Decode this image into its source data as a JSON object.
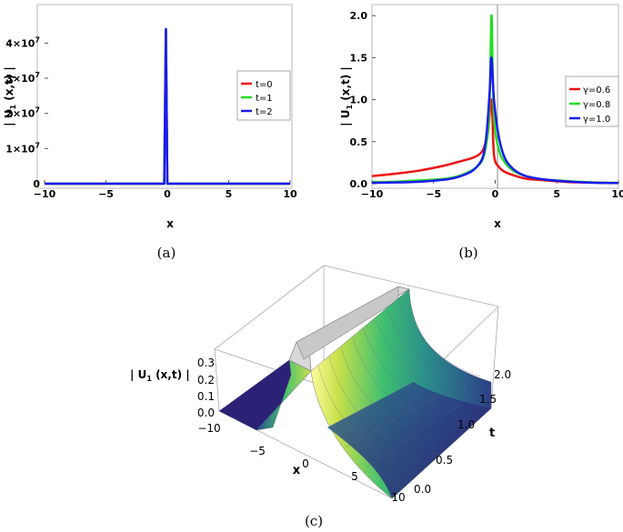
{
  "chart_data": [
    {
      "panel": "(a)",
      "type": "line",
      "xlabel": "x",
      "ylabel": "| U",
      "ylabel_sub": "1",
      "ylabel_tail": " (x,t) |",
      "xlim": [
        -10,
        10
      ],
      "ylim": [
        0,
        45000000
      ],
      "xticks": [
        -10,
        -5,
        0,
        5,
        10
      ],
      "xtick_labels": [
        "−10",
        "−5",
        "0",
        "5",
        "10"
      ],
      "yticks": [
        {
          "value": 0,
          "base": "0",
          "exp": ""
        },
        {
          "value": 10000000,
          "base": "1×10",
          "exp": "7"
        },
        {
          "value": 20000000,
          "base": "2×10",
          "exp": "7"
        },
        {
          "value": 30000000,
          "base": "3×10",
          "exp": "7"
        },
        {
          "value": 40000000,
          "base": "4×10",
          "exp": "7"
        }
      ],
      "legend": "right",
      "series": [
        {
          "name": "t=0",
          "color": "#ee1111",
          "x": [
            -10,
            -0.25,
            -0.12,
            0.0,
            10
          ],
          "y": [
            0,
            0,
            44000000,
            0,
            0
          ]
        },
        {
          "name": "t=1",
          "color": "#22dd22",
          "x": [
            -10,
            -0.25,
            -0.12,
            0.0,
            10
          ],
          "y": [
            0,
            0,
            44000000,
            0,
            0
          ]
        },
        {
          "name": "t=2",
          "color": "#1a1aee",
          "x": [
            -10,
            -0.25,
            -0.12,
            0.0,
            10
          ],
          "y": [
            0,
            0,
            44000000,
            0,
            0
          ]
        }
      ]
    },
    {
      "panel": "(b)",
      "type": "line",
      "xlabel": "x",
      "ylabel": "| U",
      "ylabel_sub": "1",
      "ylabel_tail": " (x,t) |",
      "xlim": [
        -10,
        10
      ],
      "ylim": [
        0,
        2.1
      ],
      "xticks": [
        -10,
        -5,
        0,
        5,
        10
      ],
      "xtick_labels": [
        "−10",
        "−5",
        "0",
        "5",
        "10"
      ],
      "yticks": [
        0,
        0.5,
        1.0,
        1.5,
        2.0
      ],
      "ytick_labels": [
        "0.0",
        "0.5",
        "1.0",
        "1.5",
        "2.0"
      ],
      "legend": "right",
      "series": [
        {
          "name": "γ=0.6",
          "color": "#ee1111",
          "x": [
            -10,
            -8,
            -6,
            -4,
            -3,
            -2,
            -1.5,
            -1,
            -0.6,
            -0.3,
            -0.1,
            0.3,
            0.8,
            1.5,
            2.5,
            4,
            6,
            8,
            10
          ],
          "y": [
            0.09,
            0.12,
            0.16,
            0.22,
            0.26,
            0.3,
            0.33,
            0.4,
            0.6,
            1.0,
            0.35,
            0.2,
            0.14,
            0.1,
            0.06,
            0.04,
            0.02,
            0.012,
            0.008
          ]
        },
        {
          "name": "γ=0.8",
          "color": "#22dd22",
          "x": [
            -10,
            -8,
            -6,
            -4,
            -3,
            -2,
            -1.5,
            -1,
            -0.6,
            -0.45,
            -0.3,
            -0.2,
            -0.05,
            0.3,
            0.8,
            1.5,
            2.5,
            4,
            6,
            8,
            10
          ],
          "y": [
            0.02,
            0.025,
            0.04,
            0.06,
            0.09,
            0.15,
            0.2,
            0.3,
            0.6,
            1.0,
            2.0,
            1.3,
            0.7,
            0.4,
            0.25,
            0.15,
            0.09,
            0.05,
            0.03,
            0.015,
            0.01
          ]
        },
        {
          "name": "γ=1.0",
          "color": "#1a1aee",
          "x": [
            -10,
            -8,
            -6,
            -4,
            -3,
            -2,
            -1.5,
            -1,
            -0.7,
            -0.45,
            -0.3,
            -0.1,
            0.3,
            0.8,
            1.5,
            2.5,
            4,
            6,
            8,
            10
          ],
          "y": [
            0.01,
            0.015,
            0.025,
            0.05,
            0.08,
            0.14,
            0.2,
            0.32,
            0.6,
            1.1,
            1.5,
            1.0,
            0.55,
            0.3,
            0.17,
            0.09,
            0.05,
            0.025,
            0.012,
            0.008
          ]
        }
      ]
    },
    {
      "panel": "(c)",
      "type": "surface",
      "zlabel": "| U",
      "zlabel_sub": "1",
      "zlabel_tail": " (x,t) |",
      "xlabel": "x",
      "tlabel": "t",
      "xlim": [
        -10,
        10
      ],
      "tlim": [
        0,
        2
      ],
      "zlim": [
        0,
        0.35
      ],
      "xtick_labels": [
        "−10",
        "−5",
        "0",
        "5",
        "10"
      ],
      "ttick_labels": [
        "0.0",
        "0.5",
        "1.0",
        "1.5",
        "2.0"
      ],
      "ztick_labels": [
        "0.0",
        "0.1",
        "0.2",
        "0.3"
      ],
      "colormap": [
        "#2b1a6e",
        "#2d4d8c",
        "#2a8c8c",
        "#3fbf70",
        "#c8e04a",
        "#fcfc9a"
      ]
    }
  ],
  "captions": [
    "(a)",
    "(b)",
    "(c)"
  ]
}
